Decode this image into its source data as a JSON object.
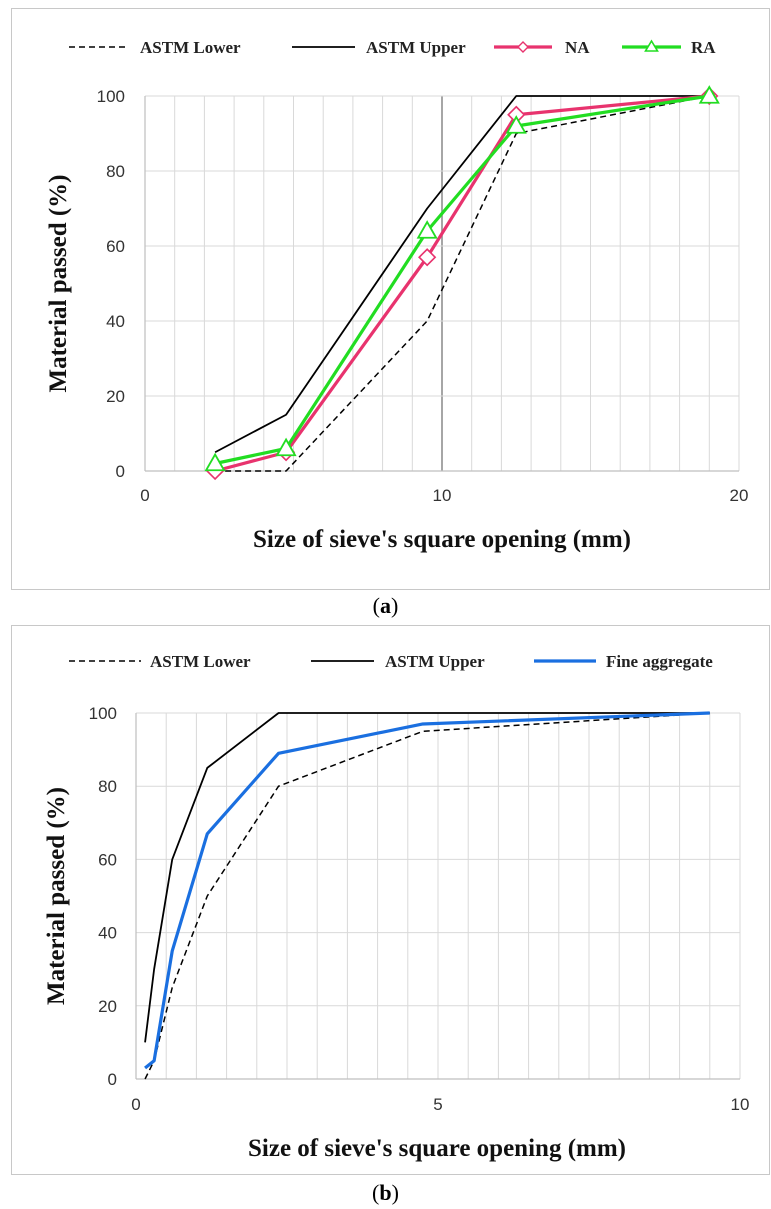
{
  "figure": {
    "caption_a_label": "a",
    "caption_b_label": "b",
    "caption_open": "(",
    "caption_close": ")"
  },
  "chart_data": [
    {
      "type": "line",
      "panel": "a",
      "xlabel": "Size of sieve's square opening (mm)",
      "ylabel": "Material passed (%)",
      "xlim": [
        0,
        20
      ],
      "ylim": [
        0,
        100
      ],
      "xticks": [
        0,
        10,
        20
      ],
      "yticks": [
        0,
        20,
        40,
        60,
        80,
        100
      ],
      "grid": true,
      "legend_position": "top",
      "series": [
        {
          "name": "ASTM Lower",
          "color": "#000000",
          "style": "dashed",
          "marker": "none",
          "x": [
            2.36,
            4.75,
            9.5,
            12.5,
            19
          ],
          "y": [
            0,
            0,
            40,
            90,
            100
          ]
        },
        {
          "name": "ASTM Upper",
          "color": "#000000",
          "style": "solid",
          "marker": "none",
          "x": [
            2.36,
            4.75,
            9.5,
            12.5,
            19
          ],
          "y": [
            5,
            15,
            70,
            100,
            100
          ]
        },
        {
          "name": "NA",
          "color": "#e8336e",
          "style": "solid",
          "marker": "diamond",
          "x": [
            2.36,
            4.75,
            9.5,
            12.5,
            19
          ],
          "y": [
            0,
            5,
            57,
            95,
            100
          ]
        },
        {
          "name": "RA",
          "color": "#22dd22",
          "style": "solid",
          "marker": "triangle",
          "x": [
            2.36,
            4.75,
            9.5,
            12.5,
            19
          ],
          "y": [
            2,
            6,
            64,
            92,
            100
          ]
        }
      ]
    },
    {
      "type": "line",
      "panel": "b",
      "xlabel": "Size of sieve's square opening (mm)",
      "ylabel": "Material passed (%)",
      "xlim": [
        0,
        10
      ],
      "ylim": [
        0,
        100
      ],
      "xticks": [
        0,
        5,
        10
      ],
      "yticks": [
        0,
        20,
        40,
        60,
        80,
        100
      ],
      "grid": true,
      "legend_position": "top",
      "series": [
        {
          "name": "ASTM Lower",
          "color": "#000000",
          "style": "dashed",
          "marker": "none",
          "x": [
            0.15,
            0.3,
            0.6,
            1.18,
            2.36,
            4.75,
            9.5
          ],
          "y": [
            0,
            5,
            25,
            50,
            80,
            95,
            100
          ]
        },
        {
          "name": "ASTM Upper",
          "color": "#000000",
          "style": "solid",
          "marker": "none",
          "x": [
            0.15,
            0.3,
            0.6,
            1.18,
            2.36,
            4.75,
            9.5
          ],
          "y": [
            10,
            30,
            60,
            85,
            100,
            100,
            100
          ]
        },
        {
          "name": "Fine aggregate",
          "color": "#1a6fe0",
          "style": "solid",
          "marker": "none",
          "x": [
            0.15,
            0.3,
            0.6,
            1.18,
            2.36,
            4.75,
            9.5
          ],
          "y": [
            3,
            5,
            35,
            67,
            89,
            97,
            100
          ]
        }
      ]
    }
  ]
}
